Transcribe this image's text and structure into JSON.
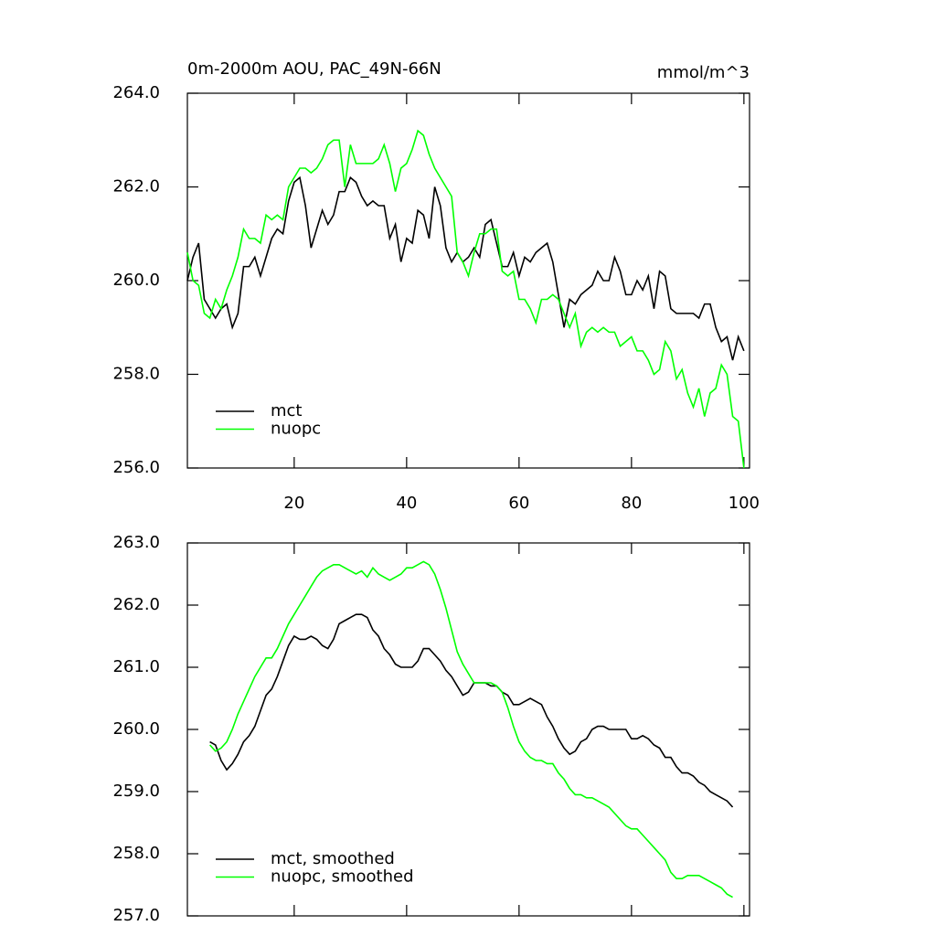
{
  "chart_data": [
    {
      "type": "line",
      "title": "0m-2000m AOU, PAC_49N-66N",
      "units": "mmol/m^3",
      "x": [
        1,
        2,
        3,
        4,
        5,
        6,
        7,
        8,
        9,
        10,
        11,
        12,
        13,
        14,
        15,
        16,
        17,
        18,
        19,
        20,
        21,
        22,
        23,
        24,
        25,
        26,
        27,
        28,
        29,
        30,
        31,
        32,
        33,
        34,
        35,
        36,
        37,
        38,
        39,
        40,
        41,
        42,
        43,
        44,
        45,
        46,
        47,
        48,
        49,
        50,
        51,
        52,
        53,
        54,
        55,
        56,
        57,
        58,
        59,
        60,
        61,
        62,
        63,
        64,
        65,
        66,
        67,
        68,
        69,
        70,
        71,
        72,
        73,
        74,
        75,
        76,
        77,
        78,
        79,
        80,
        81,
        82,
        83,
        84,
        85,
        86,
        87,
        88,
        89,
        90,
        91,
        92,
        93,
        94,
        95,
        96,
        97,
        98,
        99,
        100
      ],
      "series": [
        {
          "name": "mct",
          "color": "#000000",
          "values": [
            260.0,
            260.5,
            260.8,
            259.6,
            259.4,
            259.2,
            259.4,
            259.5,
            259.0,
            259.3,
            260.3,
            260.3,
            260.5,
            260.1,
            260.5,
            260.9,
            261.1,
            261.0,
            261.7,
            262.1,
            262.2,
            261.6,
            260.7,
            261.1,
            261.5,
            261.2,
            261.4,
            261.9,
            261.9,
            262.2,
            262.1,
            261.8,
            261.6,
            261.7,
            261.6,
            261.6,
            260.9,
            261.2,
            260.4,
            260.9,
            260.8,
            261.5,
            261.4,
            260.9,
            262.0,
            261.6,
            260.7,
            260.4,
            260.6,
            260.4,
            260.5,
            260.7,
            260.5,
            261.2,
            261.3,
            260.8,
            260.3,
            260.3,
            260.6,
            260.1,
            260.5,
            260.4,
            260.6,
            260.7,
            260.8,
            260.4,
            259.7,
            259.0,
            259.6,
            259.5,
            259.7,
            259.8,
            259.9,
            260.2,
            260.0,
            260.0,
            260.5,
            260.2,
            259.7,
            259.7,
            260.0,
            259.8,
            260.1,
            259.4,
            260.2,
            260.1,
            259.4,
            259.3,
            259.3,
            259.3,
            259.3,
            259.2,
            259.5,
            259.5,
            259.0,
            258.7,
            258.8,
            258.3,
            258.8,
            258.5
          ]
        },
        {
          "name": "nuopc",
          "color": "#00ff00",
          "values": [
            260.6,
            260.0,
            259.9,
            259.3,
            259.2,
            259.6,
            259.4,
            259.8,
            260.1,
            260.5,
            261.1,
            260.9,
            260.9,
            260.8,
            261.4,
            261.3,
            261.4,
            261.3,
            262.0,
            262.2,
            262.4,
            262.4,
            262.3,
            262.4,
            262.6,
            262.9,
            263.0,
            263.0,
            262.0,
            262.9,
            262.5,
            262.5,
            262.5,
            262.5,
            262.6,
            262.9,
            262.5,
            261.9,
            262.4,
            262.5,
            262.8,
            263.2,
            263.1,
            262.7,
            262.4,
            262.2,
            262.0,
            261.8,
            260.6,
            260.4,
            260.1,
            260.6,
            261.0,
            261.0,
            261.1,
            261.1,
            260.2,
            260.1,
            260.2,
            259.6,
            259.6,
            259.4,
            259.1,
            259.6,
            259.6,
            259.7,
            259.6,
            259.3,
            259.0,
            259.3,
            258.6,
            258.9,
            259.0,
            258.9,
            259.0,
            258.9,
            258.9,
            258.6,
            258.7,
            258.8,
            258.5,
            258.5,
            258.3,
            258.0,
            258.1,
            258.7,
            258.5,
            257.9,
            258.1,
            257.6,
            257.3,
            257.7,
            257.1,
            257.6,
            257.7,
            258.2,
            258.0,
            257.1,
            257.0,
            256.0
          ]
        }
      ],
      "xlim": [
        1,
        101
      ],
      "xticks": [
        20,
        40,
        60,
        80,
        100
      ],
      "show_xtick_labels": true,
      "ylim": [
        256,
        264
      ],
      "yticks": [
        {
          "value": 256,
          "label": "256.0"
        },
        {
          "value": 258,
          "label": "258.0"
        },
        {
          "value": 260,
          "label": "260.0"
        },
        {
          "value": 262,
          "label": "262.0"
        },
        {
          "value": 264,
          "label": "264.0"
        }
      ],
      "legend": "lower left"
    },
    {
      "type": "line",
      "x": [
        5,
        6,
        7,
        8,
        9,
        10,
        11,
        12,
        13,
        14,
        15,
        16,
        17,
        18,
        19,
        20,
        21,
        22,
        23,
        24,
        25,
        26,
        27,
        28,
        29,
        30,
        31,
        32,
        33,
        34,
        35,
        36,
        37,
        38,
        39,
        40,
        41,
        42,
        43,
        44,
        45,
        46,
        47,
        48,
        49,
        50,
        51,
        52,
        53,
        54,
        55,
        56,
        57,
        58,
        59,
        60,
        61,
        62,
        63,
        64,
        65,
        66,
        67,
        68,
        69,
        70,
        71,
        72,
        73,
        74,
        75,
        76,
        77,
        78,
        79,
        80,
        81,
        82,
        83,
        84,
        85,
        86,
        87,
        88,
        89,
        90,
        91,
        92,
        93,
        94,
        95,
        96,
        97,
        98
      ],
      "series": [
        {
          "name": "mct, smoothed",
          "color": "#000000",
          "values": [
            259.8,
            259.75,
            259.5,
            259.35,
            259.45,
            259.6,
            259.8,
            259.9,
            260.05,
            260.3,
            260.55,
            260.65,
            260.85,
            261.1,
            261.35,
            261.5,
            261.45,
            261.45,
            261.5,
            261.45,
            261.35,
            261.3,
            261.45,
            261.7,
            261.75,
            261.8,
            261.85,
            261.85,
            261.8,
            261.6,
            261.5,
            261.3,
            261.2,
            261.05,
            261.0,
            261.0,
            261.0,
            261.1,
            261.3,
            261.3,
            261.2,
            261.1,
            260.95,
            260.85,
            260.7,
            260.55,
            260.6,
            260.75,
            260.75,
            260.75,
            260.7,
            260.7,
            260.6,
            260.55,
            260.4,
            260.4,
            260.45,
            260.5,
            260.45,
            260.4,
            260.2,
            260.05,
            259.85,
            259.7,
            259.6,
            259.65,
            259.8,
            259.85,
            260.0,
            260.05,
            260.05,
            260.0,
            260.0,
            260.0,
            260.0,
            259.85,
            259.85,
            259.9,
            259.85,
            259.75,
            259.7,
            259.55,
            259.55,
            259.4,
            259.3,
            259.3,
            259.25,
            259.15,
            259.1,
            259.0,
            258.95,
            258.9,
            258.85,
            258.75
          ]
        },
        {
          "name": "nuopc, smoothed",
          "color": "#00ff00",
          "values": [
            259.75,
            259.65,
            259.7,
            259.8,
            260.0,
            260.25,
            260.45,
            260.65,
            260.85,
            261.0,
            261.15,
            261.15,
            261.3,
            261.5,
            261.7,
            261.85,
            262.0,
            262.15,
            262.3,
            262.45,
            262.55,
            262.6,
            262.65,
            262.65,
            262.6,
            262.55,
            262.5,
            262.55,
            262.45,
            262.6,
            262.5,
            262.45,
            262.4,
            262.45,
            262.5,
            262.6,
            262.6,
            262.65,
            262.7,
            262.65,
            262.5,
            262.25,
            261.95,
            261.6,
            261.25,
            261.05,
            260.9,
            260.75,
            260.75,
            260.75,
            260.75,
            260.7,
            260.6,
            260.35,
            260.05,
            259.8,
            259.65,
            259.55,
            259.5,
            259.5,
            259.45,
            259.45,
            259.3,
            259.2,
            259.05,
            258.95,
            258.95,
            258.9,
            258.9,
            258.85,
            258.8,
            258.75,
            258.65,
            258.55,
            258.45,
            258.4,
            258.4,
            258.3,
            258.2,
            258.1,
            258.0,
            257.9,
            257.7,
            257.6,
            257.6,
            257.65,
            257.65,
            257.65,
            257.6,
            257.55,
            257.5,
            257.45,
            257.35,
            257.3
          ]
        }
      ],
      "xlim": [
        1,
        101
      ],
      "xticks": [
        20,
        40,
        60,
        80,
        100
      ],
      "show_xtick_labels": false,
      "ylim": [
        257,
        263
      ],
      "yticks": [
        {
          "value": 257,
          "label": "257.0"
        },
        {
          "value": 258,
          "label": "258.0"
        },
        {
          "value": 259,
          "label": "259.0"
        },
        {
          "value": 260,
          "label": "260.0"
        },
        {
          "value": 261,
          "label": "261.0"
        },
        {
          "value": 262,
          "label": "262.0"
        },
        {
          "value": 263,
          "label": "263.0"
        }
      ],
      "legend": "lower left"
    }
  ]
}
